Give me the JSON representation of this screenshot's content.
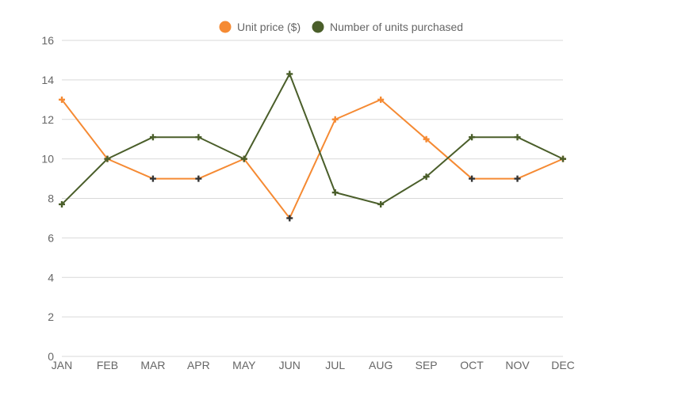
{
  "chart_data": {
    "type": "line",
    "categories": [
      "JAN",
      "FEB",
      "MAR",
      "APR",
      "MAY",
      "JUN",
      "JUL",
      "AUG",
      "SEP",
      "OCT",
      "NOV",
      "DEC"
    ],
    "ylim": [
      0,
      16
    ],
    "yticks": [
      "0",
      "2",
      "4",
      "6",
      "8",
      "10",
      "12",
      "14",
      "16"
    ],
    "grid": true,
    "legend_position": "top-center",
    "series": [
      {
        "name": "Unit price ($)",
        "color": "#f58a33",
        "values": [
          13,
          10,
          9,
          9,
          10,
          7,
          12,
          13,
          11,
          9,
          9,
          10
        ]
      },
      {
        "name": "Number of units purchased",
        "color": "#4a5e2a",
        "values": [
          7.7,
          10,
          11.1,
          11.1,
          10,
          14.3,
          8.3,
          7.7,
          9.1,
          11.1,
          11.1,
          10
        ]
      }
    ],
    "marker_color_dark": "#333333"
  }
}
